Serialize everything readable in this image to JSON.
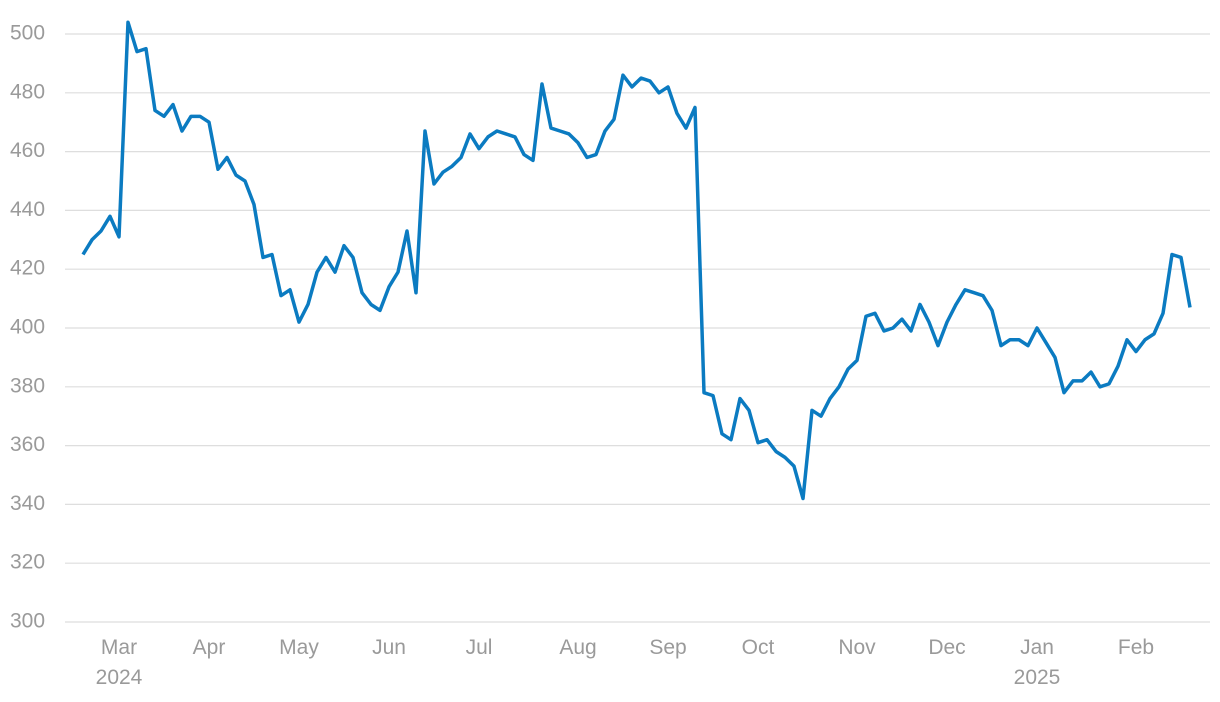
{
  "chart_data": {
    "type": "line",
    "categories": [
      null,
      null,
      null,
      null,
      "Mar 2024",
      null,
      null,
      null,
      null,
      null,
      null,
      null,
      null,
      null,
      "Apr",
      null,
      null,
      null,
      null,
      null,
      null,
      null,
      null,
      null,
      "May",
      null,
      null,
      null,
      null,
      null,
      null,
      null,
      null,
      null,
      "Jun",
      null,
      null,
      null,
      null,
      null,
      null,
      null,
      null,
      null,
      "Jul",
      null,
      null,
      null,
      null,
      null,
      null,
      null,
      null,
      null,
      null,
      "Aug",
      null,
      null,
      null,
      null,
      null,
      null,
      null,
      null,
      null,
      "Sep",
      null,
      null,
      null,
      null,
      null,
      null,
      null,
      null,
      null,
      "Oct",
      null,
      null,
      null,
      null,
      null,
      null,
      null,
      null,
      null,
      null,
      "Nov",
      null,
      null,
      null,
      null,
      null,
      null,
      null,
      null,
      null,
      "Dec",
      null,
      null,
      null,
      null,
      null,
      null,
      null,
      null,
      null,
      "Jan 2025",
      null,
      null,
      null,
      null,
      null,
      null,
      null,
      null,
      null,
      null,
      "Feb",
      null,
      null,
      null,
      null,
      null,
      null
    ],
    "values": [
      425,
      430,
      433,
      438,
      431,
      504,
      494,
      495,
      474,
      472,
      476,
      467,
      472,
      472,
      470,
      454,
      458,
      452,
      450,
      442,
      424,
      425,
      411,
      413,
      402,
      408,
      419,
      424,
      419,
      428,
      424,
      412,
      408,
      406,
      414,
      419,
      433,
      412,
      467,
      449,
      453,
      455,
      458,
      466,
      461,
      465,
      467,
      466,
      465,
      459,
      457,
      483,
      468,
      467,
      466,
      463,
      458,
      459,
      467,
      471,
      486,
      482,
      485,
      484,
      480,
      482,
      473,
      468,
      475,
      378,
      377,
      364,
      362,
      376,
      372,
      361,
      362,
      358,
      356,
      353,
      342,
      372,
      370,
      376,
      380,
      386,
      389,
      404,
      405,
      399,
      400,
      403,
      399,
      408,
      402,
      394,
      402,
      408,
      413,
      412,
      411,
      406,
      394,
      396,
      396,
      394,
      400,
      395,
      390,
      378,
      382,
      382,
      385,
      380,
      381,
      387,
      396,
      392,
      396,
      398,
      405,
      425,
      424,
      407
    ],
    "color": "#0b7bc1",
    "ylim": [
      300,
      500
    ],
    "yticks": [
      300,
      320,
      340,
      360,
      380,
      400,
      420,
      440,
      460,
      480,
      500
    ],
    "grid": true
  }
}
